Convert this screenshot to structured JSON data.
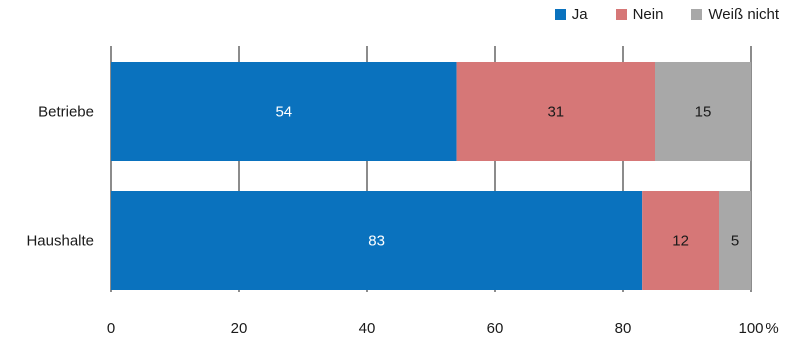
{
  "chart_data": {
    "type": "bar",
    "orientation": "horizontal",
    "stacked": true,
    "categories": [
      "Betriebe",
      "Haushalte"
    ],
    "series": [
      {
        "name": "Ja",
        "color": "#0a72be",
        "values": [
          54,
          83
        ],
        "label_color": "#ffffff"
      },
      {
        "name": "Nein",
        "color": "#d67777",
        "values": [
          31,
          12
        ],
        "label_color": "#1a1a1a"
      },
      {
        "name": "Weiß nicht",
        "color": "#a8a8a8",
        "values": [
          15,
          5
        ],
        "label_color": "#1a1a1a"
      }
    ],
    "xlim": [
      0,
      100
    ],
    "xticks": [
      "0",
      "20",
      "40",
      "60",
      "80",
      "100"
    ],
    "x_unit": "%",
    "grid": "vertical",
    "legend_position": "top-right"
  }
}
